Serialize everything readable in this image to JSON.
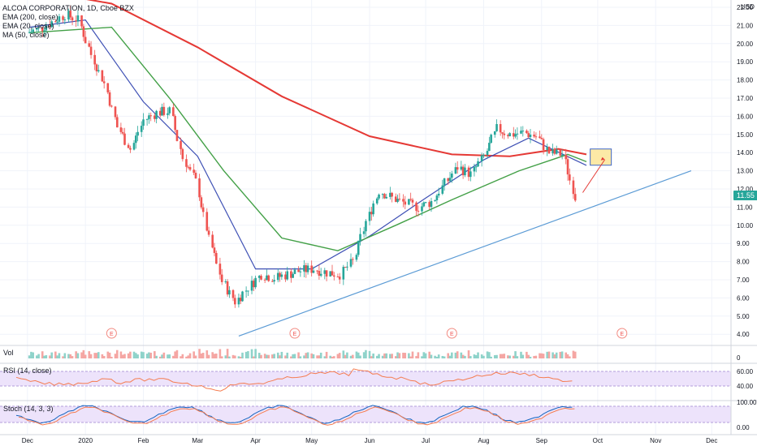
{
  "header": {
    "symbol_line": "ALCOA CORPORATION, 1D, Cboe BZX",
    "indicators": [
      "EMA (200, close)",
      "EMA (20, close)",
      "MA (50, close)"
    ]
  },
  "price_axis": {
    "currency": "USD",
    "ticks": [
      "22.00",
      "21.00",
      "20.00",
      "19.00",
      "18.00",
      "17.00",
      "16.00",
      "15.00",
      "14.00",
      "13.00",
      "12.00",
      "11.00",
      "10.00",
      "9.00",
      "8.00",
      "7.00",
      "6.00",
      "5.00",
      "4.00"
    ],
    "last_price": "11.55",
    "last_price_color": "#26a69a"
  },
  "time_axis": {
    "labels": [
      "Dec",
      "2020",
      "Feb",
      "Mar",
      "Apr",
      "May",
      "Jun",
      "Jul",
      "Aug",
      "Sep",
      "Oct",
      "Nov",
      "Dec"
    ]
  },
  "panes": {
    "volume_label": "Vol",
    "volume_scale": "0",
    "rsi_label": "RSI (14, close)",
    "rsi_ticks": [
      "60.00",
      "40.00"
    ],
    "stoch_label": "Stoch (14, 3, 3)",
    "stoch_ticks": [
      "100.00",
      "0.00"
    ]
  },
  "earnings_marker_label": "E",
  "colors": {
    "up": "#26a69a",
    "down": "#ef5350",
    "ema200": "#e53935",
    "ema20": "#3f51b5",
    "ma50": "#43a047",
    "trendline": "#5b9bd5",
    "rsi_line": "#f57c50",
    "rsi_band": "#ede3fb",
    "stoch_k": "#1565c0",
    "stoch_d": "#f57c50",
    "target_box": "#fce9a6"
  },
  "chart_data": {
    "type": "candlestick",
    "title": "ALCOA CORPORATION, 1D, Cboe BZX",
    "ylabel": "USD",
    "ylim": [
      3.5,
      22.4
    ],
    "x_labels": [
      "Dec",
      "2020",
      "Feb",
      "Mar",
      "Apr",
      "May",
      "Jun",
      "Jul",
      "Aug",
      "Sep",
      "Oct",
      "Nov",
      "Dec"
    ],
    "close_series": [
      {
        "date": "2019-12-02",
        "close": 20.6
      },
      {
        "date": "2019-12-09",
        "close": 20.8
      },
      {
        "date": "2019-12-16",
        "close": 21.2
      },
      {
        "date": "2019-12-23",
        "close": 21.6
      },
      {
        "date": "2019-12-30",
        "close": 21.3
      },
      {
        "date": "2020-01-06",
        "close": 19.4
      },
      {
        "date": "2020-01-13",
        "close": 17.8
      },
      {
        "date": "2020-01-20",
        "close": 15.4
      },
      {
        "date": "2020-01-27",
        "close": 14.2
      },
      {
        "date": "2020-02-03",
        "close": 15.8
      },
      {
        "date": "2020-02-10",
        "close": 16.2
      },
      {
        "date": "2020-02-17",
        "close": 16.3
      },
      {
        "date": "2020-02-24",
        "close": 13.7
      },
      {
        "date": "2020-03-02",
        "close": 12.4
      },
      {
        "date": "2020-03-09",
        "close": 9.2
      },
      {
        "date": "2020-03-16",
        "close": 6.9
      },
      {
        "date": "2020-03-23",
        "close": 5.8
      },
      {
        "date": "2020-03-30",
        "close": 6.6
      },
      {
        "date": "2020-04-06",
        "close": 7.3
      },
      {
        "date": "2020-04-13",
        "close": 7.1
      },
      {
        "date": "2020-04-20",
        "close": 7.3
      },
      {
        "date": "2020-04-27",
        "close": 7.5
      },
      {
        "date": "2020-05-04",
        "close": 7.6
      },
      {
        "date": "2020-05-11",
        "close": 7.4
      },
      {
        "date": "2020-05-18",
        "close": 7.3
      },
      {
        "date": "2020-05-25",
        "close": 8.0
      },
      {
        "date": "2020-06-01",
        "close": 10.2
      },
      {
        "date": "2020-06-08",
        "close": 11.9
      },
      {
        "date": "2020-06-15",
        "close": 11.5
      },
      {
        "date": "2020-06-22",
        "close": 11.2
      },
      {
        "date": "2020-06-29",
        "close": 11.0
      },
      {
        "date": "2020-07-06",
        "close": 11.3
      },
      {
        "date": "2020-07-13",
        "close": 12.3
      },
      {
        "date": "2020-07-20",
        "close": 13.2
      },
      {
        "date": "2020-07-27",
        "close": 12.8
      },
      {
        "date": "2020-08-03",
        "close": 13.8
      },
      {
        "date": "2020-08-10",
        "close": 15.3
      },
      {
        "date": "2020-08-17",
        "close": 15.0
      },
      {
        "date": "2020-08-24",
        "close": 15.1
      },
      {
        "date": "2020-08-31",
        "close": 14.9
      },
      {
        "date": "2020-09-07",
        "close": 14.0
      },
      {
        "date": "2020-09-14",
        "close": 13.9
      },
      {
        "date": "2020-09-21",
        "close": 11.55
      }
    ],
    "series": [
      {
        "name": "EMA (200, close)",
        "values": [
          {
            "date": "2019-12-02",
            "v": 23.0
          },
          {
            "date": "2020-01-15",
            "v": 22.2
          },
          {
            "date": "2020-03-01",
            "v": 19.8
          },
          {
            "date": "2020-04-15",
            "v": 17.1
          },
          {
            "date": "2020-06-01",
            "v": 14.9
          },
          {
            "date": "2020-07-15",
            "v": 13.9
          },
          {
            "date": "2020-08-15",
            "v": 13.8
          },
          {
            "date": "2020-09-10",
            "v": 14.2
          },
          {
            "date": "2020-09-25",
            "v": 13.9
          }
        ]
      },
      {
        "name": "EMA (20, close)",
        "values": [
          {
            "date": "2019-12-02",
            "v": 20.9
          },
          {
            "date": "2020-01-01",
            "v": 21.3
          },
          {
            "date": "2020-02-01",
            "v": 16.8
          },
          {
            "date": "2020-03-01",
            "v": 13.8
          },
          {
            "date": "2020-04-01",
            "v": 7.6
          },
          {
            "date": "2020-05-01",
            "v": 7.6
          },
          {
            "date": "2020-06-01",
            "v": 9.4
          },
          {
            "date": "2020-07-01",
            "v": 11.5
          },
          {
            "date": "2020-08-01",
            "v": 13.6
          },
          {
            "date": "2020-08-25",
            "v": 14.8
          },
          {
            "date": "2020-09-25",
            "v": 13.3
          }
        ]
      },
      {
        "name": "MA (50, close)",
        "values": [
          {
            "date": "2019-12-02",
            "v": 20.6
          },
          {
            "date": "2020-01-15",
            "v": 20.9
          },
          {
            "date": "2020-02-15",
            "v": 17.0
          },
          {
            "date": "2020-03-15",
            "v": 13.0
          },
          {
            "date": "2020-04-15",
            "v": 9.3
          },
          {
            "date": "2020-05-15",
            "v": 8.6
          },
          {
            "date": "2020-06-15",
            "v": 10.0
          },
          {
            "date": "2020-07-15",
            "v": 11.4
          },
          {
            "date": "2020-08-20",
            "v": 13.0
          },
          {
            "date": "2020-09-15",
            "v": 13.9
          },
          {
            "date": "2020-09-25",
            "v": 13.5
          }
        ]
      }
    ],
    "trendline": [
      {
        "date": "2020-03-23",
        "v": 3.9
      },
      {
        "date": "2020-11-20",
        "v": 13.0
      }
    ],
    "earnings_dates": [
      "2020-01-15",
      "2020-04-22",
      "2020-07-15",
      "2020-10-14"
    ]
  }
}
